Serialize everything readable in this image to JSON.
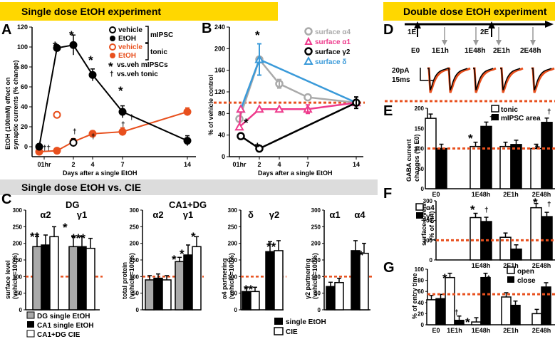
{
  "banners": {
    "single": "Single dose EtOH experiment",
    "double": "Double dose EtOH experiment",
    "cie": "Single dose EtOH vs. CIE"
  },
  "panel_labels": {
    "A": "A",
    "B": "B",
    "C": "C",
    "D": "D",
    "E": "E",
    "F": "F",
    "G": "G"
  },
  "colors": {
    "banner_yellow": "#ffd700",
    "banner_gray": "#dcdcdc",
    "orange": "#e8501e",
    "gray": "#aaaaaa",
    "pink": "#ee3a8c",
    "blue": "#3a9ad9",
    "dashed": "#e8501e"
  },
  "panelA": {
    "ylabel_line1": "EtOH (100mM) effect on",
    "ylabel_line2": "synaptic currents (% change)",
    "xlabel": "Days after a single EtOH",
    "legend": {
      "vehicle1": "vehicle",
      "etoh1": "EtOH",
      "mipsc": "mIPSC",
      "vehicle2": "vehicle",
      "etoh2": "EtOH",
      "tonic": "tonic",
      "sig1": "vs.veh mIPSCs",
      "sig2": "vs.veh  tonic"
    },
    "chart_data": {
      "type": "line",
      "x_ticks": [
        "01hr",
        "2",
        "4",
        "7",
        "14"
      ],
      "ylim": [
        -10,
        120
      ],
      "y_ticks": [
        "0",
        "20",
        "40",
        "60",
        "80",
        "100",
        "120"
      ],
      "series": [
        {
          "name": "EtOH mIPSC",
          "x": [
            0,
            1,
            2,
            4,
            7,
            14
          ],
          "y": [
            0,
            99,
            102,
            72,
            35,
            6
          ],
          "err": [
            1,
            3,
            10,
            6,
            6,
            5
          ]
        },
        {
          "name": "vehicle mIPSC",
          "x": [
            2
          ],
          "y": [
            4
          ],
          "err": [
            4
          ]
        },
        {
          "name": "EtOH tonic",
          "x": [
            0,
            1,
            2,
            4,
            7,
            14
          ],
          "y": [
            -5,
            -4,
            5,
            13,
            15,
            35
          ],
          "err": [
            1,
            2,
            3,
            3,
            4,
            4
          ]
        },
        {
          "name": "vehicle tonic",
          "x": [
            1
          ],
          "y": [
            32
          ],
          "err": [
            3
          ]
        }
      ]
    }
  },
  "panelB": {
    "ylabel": "% of vehicle control",
    "xlabel": "Days after a single EtOH",
    "legend": [
      "surface α4",
      "surface α1",
      "surface γ2",
      "surface δ"
    ],
    "chart_data": {
      "type": "line",
      "x_ticks": [
        "01hr",
        "2",
        "4",
        "7",
        "14"
      ],
      "ylim": [
        0,
        240
      ],
      "y_ticks": [
        "0",
        "40",
        "80",
        "120",
        "160",
        "200",
        "240"
      ],
      "series": [
        {
          "name": "surface α4",
          "x": [
            1,
            2,
            4,
            7,
            14
          ],
          "y": [
            70,
            180,
            135,
            110,
            100
          ]
        },
        {
          "name": "surface α1",
          "x": [
            0,
            1,
            2,
            4,
            7,
            14
          ],
          "y": [
            88,
            55,
            88,
            88,
            88,
            100
          ]
        },
        {
          "name": "surface γ2",
          "x": [
            0,
            2,
            14
          ],
          "y": [
            38,
            15,
            100
          ]
        },
        {
          "name": "surface δ",
          "x": [
            0,
            2,
            14
          ],
          "y": [
            88,
            180,
            100
          ]
        }
      ]
    }
  },
  "panelC": {
    "sub1": {
      "title": "DG",
      "groups": [
        "α2",
        "γ1"
      ],
      "ylabel": [
        "surface level",
        "(vehicle=100%)"
      ],
      "chart_data": {
        "type": "bar",
        "ylim": [
          0,
          300
        ],
        "y_ticks": [
          "0",
          "50",
          "100",
          "150",
          "200",
          "250",
          "300"
        ],
        "groups": [
          {
            "name": "α2",
            "values": [
              190,
              195,
              220
            ]
          },
          {
            "name": "γ1",
            "values": [
              190,
              190,
              185
            ]
          }
        ]
      }
    },
    "sub2": {
      "title": "CA1+DG",
      "groups": [
        "α2",
        "γ1"
      ],
      "ylabel": [
        "total protein",
        "(vehicle=100%)"
      ],
      "chart_data": {
        "type": "bar",
        "ylim": [
          0,
          300
        ],
        "y_ticks": [
          "0",
          "50",
          "100",
          "150",
          "200",
          "250",
          "300"
        ],
        "groups": [
          {
            "name": "α2",
            "values": [
              90,
              95,
              90
            ]
          },
          {
            "name": "γ1",
            "values": [
              145,
              165,
              190
            ]
          }
        ]
      }
    },
    "sub3": {
      "groups": [
        "δ",
        "γ2"
      ],
      "ylabel": [
        "α4 partnering",
        "(vehicle=100%)"
      ],
      "chart_data": {
        "type": "bar",
        "ylim": [
          0,
          300
        ],
        "y_ticks": [
          "0",
          "50",
          "100",
          "150",
          "200",
          "250",
          "300"
        ],
        "groups": [
          {
            "name": "δ",
            "values": [
              55,
              55
            ]
          },
          {
            "name": "γ2",
            "values": [
              175,
              178
            ]
          }
        ]
      }
    },
    "sub4": {
      "groups": [
        "α1",
        "α4"
      ],
      "ylabel": [
        "γ2 partnering",
        "(vehicle=100%)"
      ],
      "chart_data": {
        "type": "bar",
        "ylim": [
          0,
          300
        ],
        "y_ticks": [
          "0",
          "50",
          "100",
          "150",
          "200",
          "250",
          "300"
        ],
        "groups": [
          {
            "name": "α1",
            "values": [
              70,
              82
            ]
          },
          {
            "name": "α4",
            "values": [
              178,
              170
            ]
          }
        ]
      }
    },
    "legend_left": [
      "DG   single EtOH",
      "CA1 single EtOH",
      "CA1+DG    CIE"
    ],
    "legend_right": [
      "single EtOH",
      "CIE"
    ]
  },
  "panelD": {
    "labels": [
      "1E",
      "2E"
    ],
    "timepoints": [
      "E0",
      "1E1h",
      "1E48h",
      "2E1h",
      "2E48h"
    ],
    "scale_pa": "20pA",
    "scale_ms": "15ms"
  },
  "panelE": {
    "ylabel": [
      "GABA current",
      "changes (% E0)"
    ],
    "legend": [
      "tonic",
      "mIPSC area"
    ],
    "chart_data": {
      "type": "bar",
      "ylim": [
        0,
        200
      ],
      "y_ticks": [
        "0",
        "50",
        "100",
        "150",
        "200"
      ],
      "categories": [
        "E0",
        "1E48h",
        "2E1h",
        "2E48h"
      ],
      "series": [
        {
          "name": "tonic",
          "values": [
            175,
            105,
            105,
            100
          ]
        },
        {
          "name": "mIPSC area",
          "values": [
            100,
            155,
            110,
            165
          ]
        }
      ]
    }
  },
  "panelF": {
    "ylabel": [
      "surface levels",
      "(% of ctrl)"
    ],
    "legend": [
      "α4",
      "γ1"
    ],
    "chart_data": {
      "type": "bar",
      "ylim": [
        0,
        300
      ],
      "y_ticks": [
        "0",
        "100",
        "200",
        "300"
      ],
      "categories": [
        "1E48h",
        "2E1h",
        "2E48h"
      ],
      "series": [
        {
          "name": "α4",
          "values": [
            215,
            115,
            265
          ]
        },
        {
          "name": "γ1",
          "values": [
            195,
            55,
            220
          ]
        }
      ]
    }
  },
  "panelG": {
    "ylabel": "% of entry time",
    "legend": [
      "open",
      "close"
    ],
    "chart_data": {
      "type": "bar",
      "ylim": [
        0,
        100
      ],
      "y_ticks": [
        "0",
        "20",
        "40",
        "60",
        "80",
        "100"
      ],
      "categories": [
        "E0",
        "1E1h",
        "1E48h",
        "2E1h",
        "2E48h"
      ],
      "series": [
        {
          "name": "open",
          "values": [
            45,
            85,
            5,
            50,
            20
          ]
        },
        {
          "name": "close",
          "values": [
            47,
            8,
            85,
            35,
            68
          ]
        }
      ]
    }
  }
}
